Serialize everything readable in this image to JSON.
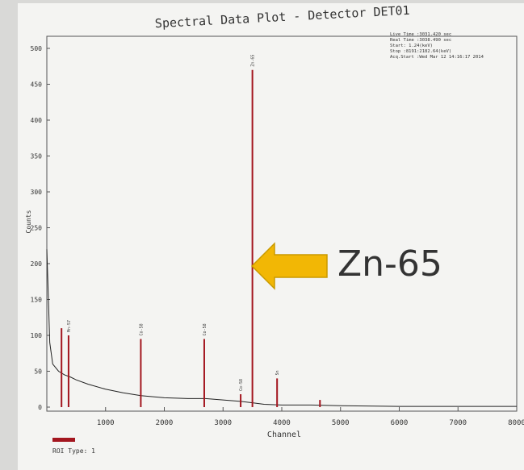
{
  "chart_data": {
    "type": "line",
    "title": "Spectral Data Plot - Detector DET01",
    "x_label": "Channel",
    "y_label": "Counts",
    "xlim": [
      0,
      8000
    ],
    "ylim": [
      0,
      500
    ],
    "xticks": [
      1000,
      2000,
      3000,
      4000,
      5000,
      6000,
      7000,
      8000
    ],
    "yticks": [
      0,
      50,
      100,
      150,
      200,
      250,
      300,
      350,
      400,
      450,
      500
    ],
    "info": [
      "Live Time :3031.420 sec",
      "Real Time :3038.490 sec",
      "Start:   1.24(keV)",
      "Stop :8191:2182.64(keV)",
      "Acq.Start :Wed Mar 12 14:16:17 2014"
    ],
    "annotation": "Zn-65",
    "series": [
      {
        "color": "#222222",
        "x": [
          0,
          50,
          100,
          200,
          300,
          400,
          500,
          700,
          1000,
          1300,
          1600,
          2000,
          2400,
          2700,
          3000,
          3300,
          3500,
          3700,
          4000,
          4500,
          5000,
          6000,
          7000,
          8000
        ],
        "values": [
          220,
          90,
          60,
          50,
          45,
          42,
          38,
          32,
          25,
          20,
          16,
          13,
          12,
          12,
          10,
          8,
          6,
          4,
          3,
          3,
          2,
          1,
          1,
          1
        ]
      },
      {
        "name": "ROI Type: 1",
        "color": "#a3161f",
        "x": [
          250,
          370,
          1600,
          2680,
          3300,
          3500,
          3920,
          4650
        ],
        "values": [
          110,
          100,
          95,
          95,
          18,
          470,
          40,
          10
        ],
        "peak_labels": [
          null,
          "Mn-57",
          "Co-58",
          "Co-58",
          "Co-58",
          "Zn-65",
          "Sn",
          null
        ]
      }
    ]
  }
}
